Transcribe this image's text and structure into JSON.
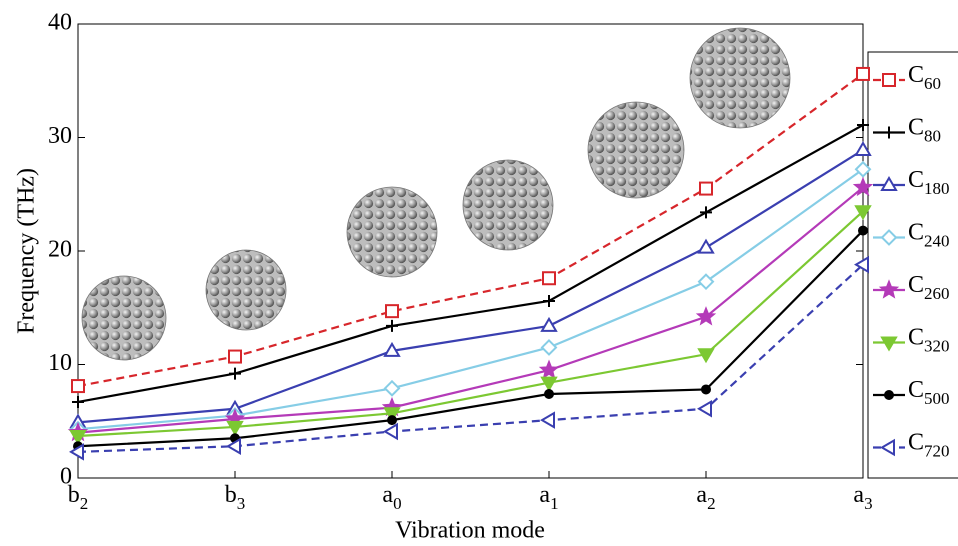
{
  "chart_data": {
    "type": "line",
    "xlabel": "Vibration mode",
    "ylabel": "Frequency (THz)",
    "categories": [
      "b2",
      "b3",
      "a0",
      "a1",
      "a2",
      "a3"
    ],
    "ylim": [
      0,
      40
    ],
    "yticks": [
      0,
      10,
      20,
      30,
      40
    ],
    "series": [
      {
        "name": "C60",
        "color": "#d7262b",
        "marker": "square",
        "dash": true,
        "values": [
          8.1,
          10.7,
          14.7,
          17.6,
          25.5,
          35.6
        ]
      },
      {
        "name": "C80",
        "color": "#000000",
        "marker": "plus",
        "dash": false,
        "values": [
          6.7,
          9.2,
          13.4,
          15.6,
          23.4,
          31.1
        ]
      },
      {
        "name": "C180",
        "color": "#3a3fb0",
        "marker": "triangle-up",
        "dash": false,
        "values": [
          4.9,
          6.1,
          11.2,
          13.4,
          20.3,
          28.9
        ]
      },
      {
        "name": "C240",
        "color": "#86cde6",
        "marker": "diamond",
        "dash": false,
        "values": [
          4.3,
          5.5,
          7.9,
          11.5,
          17.3,
          27.2
        ]
      },
      {
        "name": "C260",
        "color": "#b43ab8",
        "marker": "star",
        "dash": false,
        "values": [
          4.0,
          5.2,
          6.2,
          9.5,
          14.2,
          25.6
        ]
      },
      {
        "name": "C320",
        "color": "#7cc832",
        "marker": "triangle-down",
        "dash": false,
        "values": [
          3.7,
          4.5,
          5.7,
          8.4,
          10.9,
          23.5
        ]
      },
      {
        "name": "C500",
        "color": "#000000",
        "marker": "dot",
        "dash": false,
        "values": [
          2.8,
          3.5,
          5.1,
          7.4,
          7.8,
          21.8
        ]
      },
      {
        "name": "C720",
        "color": "#3a3fb0",
        "marker": "triangle-left",
        "dash": true,
        "values": [
          2.3,
          2.8,
          4.1,
          5.1,
          6.1,
          18.8
        ]
      }
    ]
  }
}
